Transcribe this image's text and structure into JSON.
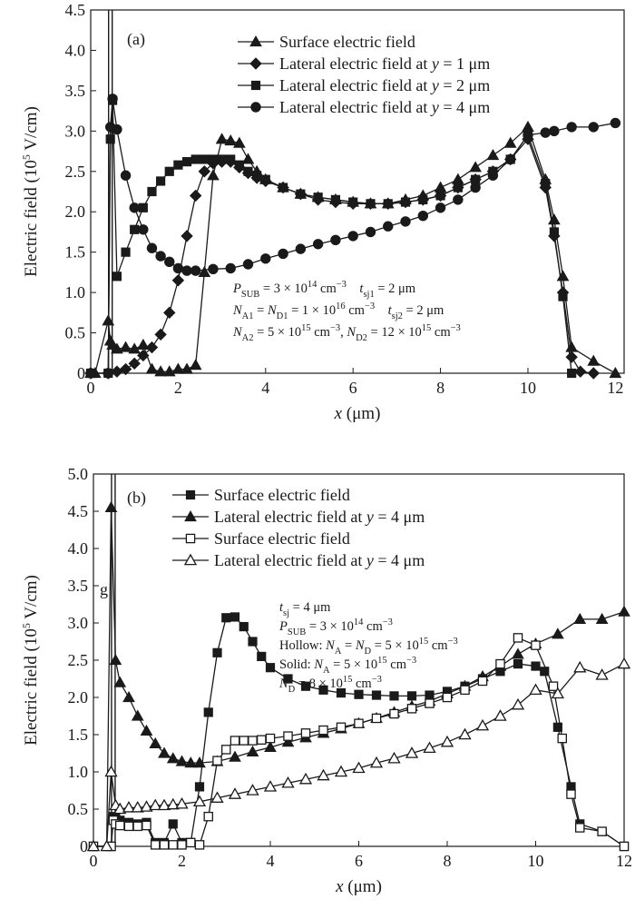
{
  "chart_data": [
    {
      "type": "line",
      "panel_label": "(a)",
      "xlabel_sym": "x",
      "xlabel_unit": " (μm)",
      "ylabel_text": "Electric field (10",
      "ylabel_exp": "5",
      "ylabel_unit": " V/cm)",
      "xlim": [
        0,
        12.2
      ],
      "ylim": [
        0,
        4.5
      ],
      "xticks": [
        0,
        2,
        4,
        6,
        8,
        10,
        12
      ],
      "yticks": [
        0,
        0.5,
        1.0,
        1.5,
        2.0,
        2.5,
        3.0,
        3.5,
        4.0,
        4.5
      ],
      "ytick_labels": [
        "0",
        "0.5",
        "1.0",
        "1.5",
        "2.0",
        "2.5",
        "3.0",
        "3.5",
        "4.0",
        "4.5"
      ],
      "legend_position": "top-right",
      "series": [
        {
          "name_pre": "Surface electric field",
          "name_sym": "",
          "name_post": "",
          "marker": "triangle-up",
          "fill": "solid",
          "x": [
            0,
            0.1,
            0.4,
            0.45,
            0.5,
            0.6,
            0.8,
            1.0,
            1.2,
            1.4,
            1.6,
            1.8,
            2.0,
            2.2,
            2.4,
            2.6,
            2.8,
            3.0,
            3.2,
            3.4,
            3.6,
            3.8,
            4.0,
            4.4,
            4.8,
            5.2,
            5.6,
            6.0,
            6.4,
            6.8,
            7.2,
            7.6,
            8.0,
            8.4,
            8.8,
            9.2,
            9.6,
            10.0,
            10.4,
            10.6,
            10.8,
            11.0,
            11.5,
            12.0
          ],
          "y": [
            0,
            0,
            0.65,
            0.4,
            0.35,
            0.3,
            0.32,
            0.3,
            0.35,
            0.05,
            0.02,
            0.02,
            0.05,
            0.05,
            0.1,
            1.25,
            2.45,
            2.9,
            2.88,
            2.85,
            2.65,
            2.5,
            2.4,
            2.3,
            2.22,
            2.18,
            2.15,
            2.12,
            2.1,
            2.1,
            2.15,
            2.2,
            2.3,
            2.4,
            2.55,
            2.7,
            2.85,
            3.05,
            2.4,
            1.9,
            1.2,
            0.32,
            0.15,
            0.0
          ]
        },
        {
          "name_pre": "Lateral electric field at ",
          "name_sym": "y",
          "name_post": " = 1 μm",
          "marker": "diamond",
          "fill": "solid",
          "x": [
            0,
            0.4,
            0.6,
            0.8,
            1.0,
            1.2,
            1.4,
            1.6,
            1.8,
            2.0,
            2.2,
            2.4,
            2.6,
            2.8,
            3.0,
            3.2,
            3.4,
            3.6,
            3.8,
            4.0,
            4.4,
            4.8,
            5.2,
            5.6,
            6.0,
            6.4,
            6.8,
            7.2,
            7.6,
            8.0,
            8.4,
            8.8,
            9.2,
            9.6,
            10.0,
            10.4,
            10.6,
            10.8,
            11.0,
            11.2,
            11.5
          ],
          "y": [
            0,
            0,
            0.02,
            0.05,
            0.12,
            0.22,
            0.32,
            0.48,
            0.75,
            1.15,
            1.7,
            2.2,
            2.5,
            2.6,
            2.62,
            2.62,
            2.55,
            2.48,
            2.42,
            2.38,
            2.3,
            2.22,
            2.15,
            2.12,
            2.1,
            2.1,
            2.1,
            2.12,
            2.15,
            2.2,
            2.3,
            2.4,
            2.5,
            2.65,
            2.9,
            2.3,
            1.7,
            1.0,
            0.2,
            0.02,
            0.0
          ]
        },
        {
          "name_pre": "Lateral electric field at ",
          "name_sym": "y",
          "name_post": " = 2 μm",
          "marker": "square",
          "fill": "solid",
          "x": [
            0,
            0.4,
            0.45,
            0.5,
            0.6,
            0.8,
            1.0,
            1.2,
            1.4,
            1.6,
            1.8,
            2.0,
            2.2,
            2.4,
            2.6,
            2.8,
            3.0,
            3.2,
            3.4,
            3.6,
            3.8,
            4.0,
            4.4,
            4.8,
            5.2,
            5.6,
            6.0,
            6.4,
            6.8,
            7.2,
            7.6,
            8.0,
            8.4,
            8.8,
            9.2,
            9.6,
            10.0,
            10.4,
            10.6,
            10.8,
            11.0
          ],
          "y": [
            0,
            0,
            2.9,
            3.38,
            1.2,
            1.5,
            1.78,
            2.05,
            2.25,
            2.38,
            2.5,
            2.58,
            2.62,
            2.65,
            2.65,
            2.65,
            2.65,
            2.65,
            2.58,
            2.5,
            2.45,
            2.4,
            2.3,
            2.22,
            2.18,
            2.15,
            2.12,
            2.1,
            2.1,
            2.12,
            2.15,
            2.2,
            2.3,
            2.4,
            2.5,
            2.65,
            2.95,
            2.35,
            1.75,
            0.95,
            0.0
          ]
        },
        {
          "name_pre": "Lateral electric field at ",
          "name_sym": "y",
          "name_post": " = 4 μm",
          "marker": "circle",
          "fill": "solid",
          "x": [
            0,
            0.4,
            0.45,
            0.5,
            0.6,
            0.8,
            1.0,
            1.2,
            1.4,
            1.6,
            1.8,
            2.0,
            2.2,
            2.4,
            2.8,
            3.2,
            3.6,
            4.0,
            4.4,
            4.8,
            5.2,
            5.6,
            6.0,
            6.4,
            6.8,
            7.2,
            7.6,
            8.0,
            8.4,
            8.8,
            9.2,
            9.6,
            10.0,
            10.4,
            10.6,
            11.0,
            11.5,
            12.0
          ],
          "y": [
            0,
            0,
            3.05,
            3.4,
            3.02,
            2.45,
            2.05,
            1.78,
            1.55,
            1.45,
            1.38,
            1.3,
            1.27,
            1.27,
            1.29,
            1.3,
            1.35,
            1.42,
            1.48,
            1.54,
            1.6,
            1.65,
            1.7,
            1.75,
            1.82,
            1.88,
            1.95,
            2.05,
            2.15,
            2.3,
            2.45,
            2.65,
            2.95,
            2.98,
            3.0,
            3.05,
            3.05,
            3.1
          ]
        }
      ],
      "annotations": [
        [
          {
            "text": "P",
            "style": "italic"
          },
          {
            "text": "SUB",
            "shift": "sub"
          },
          {
            "text": " = 3 × 10"
          },
          {
            "text": "14",
            "shift": "super"
          },
          {
            "text": " cm"
          },
          {
            "text": "−3",
            "shift": "super"
          },
          {
            "text": "    "
          },
          {
            "text": "t",
            "style": "italic"
          },
          {
            "text": "sj1",
            "shift": "sub"
          },
          {
            "text": " = 2 μm"
          }
        ],
        [
          {
            "text": "N",
            "style": "italic"
          },
          {
            "text": "A1",
            "shift": "sub"
          },
          {
            "text": " = "
          },
          {
            "text": "N",
            "style": "italic"
          },
          {
            "text": "D1",
            "shift": "sub"
          },
          {
            "text": " = 1 × 10"
          },
          {
            "text": "16",
            "shift": "super"
          },
          {
            "text": " cm"
          },
          {
            "text": "−3",
            "shift": "super"
          },
          {
            "text": "    "
          },
          {
            "text": "t",
            "style": "italic"
          },
          {
            "text": "sj2",
            "shift": "sub"
          },
          {
            "text": " = 2 μm"
          }
        ],
        [
          {
            "text": "N",
            "style": "italic"
          },
          {
            "text": "A2",
            "shift": "sub"
          },
          {
            "text": " = 5 × 10"
          },
          {
            "text": "15",
            "shift": "super"
          },
          {
            "text": " cm"
          },
          {
            "text": "−3",
            "shift": "super"
          },
          {
            "text": ", "
          },
          {
            "text": "N",
            "style": "italic"
          },
          {
            "text": "D2",
            "shift": "sub"
          },
          {
            "text": " = 12 × 10"
          },
          {
            "text": "15",
            "shift": "super"
          },
          {
            "text": " cm"
          },
          {
            "text": "−3",
            "shift": "super"
          }
        ]
      ]
    },
    {
      "type": "line",
      "panel_label": "(b)",
      "side_label": "g",
      "xlabel_sym": "x",
      "xlabel_unit": " (μm)",
      "ylabel_text": "Electric field (10",
      "ylabel_exp": "5",
      "ylabel_unit": " V/cm)",
      "xlim": [
        0,
        12
      ],
      "ylim": [
        0,
        5.0
      ],
      "xticks": [
        0,
        2,
        4,
        6,
        8,
        10,
        12
      ],
      "yticks": [
        0,
        0.5,
        1.0,
        1.5,
        2.0,
        2.5,
        3.0,
        3.5,
        4.0,
        4.5,
        5.0
      ],
      "ytick_labels": [
        "0",
        "0.5",
        "1.0",
        "1.5",
        "2.0",
        "2.5",
        "3.0",
        "3.5",
        "4.0",
        "4.5",
        "5.0"
      ],
      "legend_position": "top",
      "series": [
        {
          "name_pre": "Surface electric field",
          "name_sym": "",
          "name_post": "",
          "marker": "square",
          "fill": "solid",
          "x": [
            0,
            0.4,
            0.45,
            0.5,
            0.6,
            0.8,
            1.0,
            1.2,
            1.4,
            1.6,
            1.8,
            2.0,
            2.2,
            2.4,
            2.6,
            2.8,
            3.0,
            3.2,
            3.4,
            3.6,
            3.8,
            4.0,
            4.4,
            4.8,
            5.2,
            5.6,
            6.0,
            6.4,
            6.8,
            7.2,
            7.6,
            8.0,
            8.4,
            8.8,
            9.2,
            9.6,
            10.0,
            10.2,
            10.5,
            10.8,
            11.0,
            11.5,
            12.0
          ],
          "y": [
            0,
            0,
            0.4,
            0.38,
            0.35,
            0.32,
            0.3,
            0.32,
            0.05,
            0.05,
            0.3,
            0.05,
            0.05,
            0.8,
            1.8,
            2.6,
            3.07,
            3.08,
            2.95,
            2.75,
            2.55,
            2.4,
            2.25,
            2.15,
            2.1,
            2.06,
            2.04,
            2.03,
            2.02,
            2.02,
            2.03,
            2.08,
            2.15,
            2.25,
            2.35,
            2.45,
            2.42,
            2.35,
            1.6,
            0.8,
            0.3,
            0.2,
            0.0
          ]
        },
        {
          "name_pre": "Lateral electric field at ",
          "name_sym": "y",
          "name_post": " = 4 μm",
          "marker": "triangle-up",
          "fill": "solid",
          "x": [
            0,
            0.3,
            0.4,
            0.5,
            0.6,
            0.8,
            1.0,
            1.2,
            1.4,
            1.6,
            1.8,
            2.0,
            2.2,
            2.4,
            2.8,
            3.2,
            3.6,
            4.0,
            4.4,
            4.8,
            5.2,
            5.6,
            6.0,
            6.4,
            6.8,
            7.2,
            7.6,
            8.0,
            8.4,
            8.8,
            9.2,
            9.6,
            10.0,
            10.5,
            11.0,
            11.5,
            12.0
          ],
          "y": [
            0,
            0,
            4.55,
            2.5,
            2.2,
            2.0,
            1.75,
            1.55,
            1.38,
            1.25,
            1.18,
            1.14,
            1.12,
            1.12,
            1.14,
            1.2,
            1.27,
            1.33,
            1.4,
            1.46,
            1.52,
            1.58,
            1.65,
            1.72,
            1.8,
            1.88,
            1.95,
            2.05,
            2.15,
            2.28,
            2.42,
            2.58,
            2.72,
            2.85,
            3.05,
            3.05,
            3.15
          ]
        },
        {
          "name_pre": "Surface electric field",
          "name_sym": "",
          "name_post": "",
          "marker": "square",
          "fill": "hollow",
          "x": [
            0,
            0.4,
            0.45,
            0.5,
            0.6,
            0.8,
            1.0,
            1.2,
            1.4,
            1.6,
            1.8,
            2.0,
            2.2,
            2.4,
            2.6,
            2.8,
            3.0,
            3.2,
            3.4,
            3.6,
            3.8,
            4.0,
            4.4,
            4.8,
            5.2,
            5.6,
            6.0,
            6.4,
            6.8,
            7.2,
            7.6,
            8.0,
            8.4,
            8.8,
            9.2,
            9.6,
            10.0,
            10.4,
            10.6,
            10.8,
            11.0,
            11.5,
            12.0
          ],
          "y": [
            0,
            0,
            0.35,
            0.3,
            0.28,
            0.27,
            0.27,
            0.28,
            0.02,
            0.02,
            0.02,
            0.02,
            0.05,
            0.02,
            0.4,
            1.15,
            1.3,
            1.42,
            1.42,
            1.42,
            1.43,
            1.45,
            1.48,
            1.52,
            1.56,
            1.6,
            1.65,
            1.72,
            1.78,
            1.85,
            1.92,
            2.0,
            2.1,
            2.22,
            2.45,
            2.8,
            2.7,
            2.15,
            1.45,
            0.7,
            0.25,
            0.2,
            0.0
          ]
        },
        {
          "name_pre": "Lateral electric field at ",
          "name_sym": "y",
          "name_post": " = 4 μm",
          "marker": "triangle-up",
          "fill": "hollow",
          "x": [
            0,
            0.3,
            0.4,
            0.5,
            0.6,
            0.8,
            1.0,
            1.2,
            1.4,
            1.6,
            1.8,
            2.0,
            2.4,
            2.8,
            3.2,
            3.6,
            4.0,
            4.4,
            4.8,
            5.2,
            5.6,
            6.0,
            6.4,
            6.8,
            7.2,
            7.6,
            8.0,
            8.4,
            8.8,
            9.2,
            9.6,
            10.0,
            10.5,
            11.0,
            11.5,
            12.0
          ],
          "y": [
            0,
            0,
            1.0,
            0.55,
            0.5,
            0.52,
            0.52,
            0.53,
            0.55,
            0.55,
            0.56,
            0.57,
            0.6,
            0.65,
            0.7,
            0.75,
            0.8,
            0.85,
            0.9,
            0.95,
            1.0,
            1.05,
            1.12,
            1.18,
            1.25,
            1.32,
            1.4,
            1.5,
            1.62,
            1.75,
            1.9,
            2.1,
            2.05,
            2.4,
            2.3,
            2.45
          ]
        }
      ],
      "annotations": [
        [
          {
            "text": "t",
            "style": "italic"
          },
          {
            "text": "sj",
            "shift": "sub"
          },
          {
            "text": " = 4 μm"
          }
        ],
        [
          {
            "text": "P",
            "style": "italic"
          },
          {
            "text": "SUB",
            "shift": "sub"
          },
          {
            "text": " = 3 × 10"
          },
          {
            "text": "14",
            "shift": "super"
          },
          {
            "text": " cm"
          },
          {
            "text": "−3",
            "shift": "super"
          }
        ],
        [
          {
            "text": "Hollow: "
          },
          {
            "text": "N",
            "style": "italic"
          },
          {
            "text": "A",
            "shift": "sub"
          },
          {
            "text": " = "
          },
          {
            "text": "N",
            "style": "italic"
          },
          {
            "text": "D",
            "shift": "sub"
          },
          {
            "text": " = 5 × 10"
          },
          {
            "text": "15",
            "shift": "super"
          },
          {
            "text": " cm"
          },
          {
            "text": "−3",
            "shift": "super"
          }
        ],
        [
          {
            "text": "Solid: "
          },
          {
            "text": "N",
            "style": "italic"
          },
          {
            "text": "A",
            "shift": "sub"
          },
          {
            "text": " = 5 × 10"
          },
          {
            "text": "15",
            "shift": "super"
          },
          {
            "text": " cm"
          },
          {
            "text": "−3",
            "shift": "super"
          }
        ],
        [
          {
            "text": "N",
            "style": "italic"
          },
          {
            "text": "D",
            "shift": "sub"
          },
          {
            "text": " = 8 × 10"
          },
          {
            "text": "15",
            "shift": "super"
          },
          {
            "text": " cm"
          },
          {
            "text": "−3",
            "shift": "super"
          }
        ]
      ]
    }
  ]
}
